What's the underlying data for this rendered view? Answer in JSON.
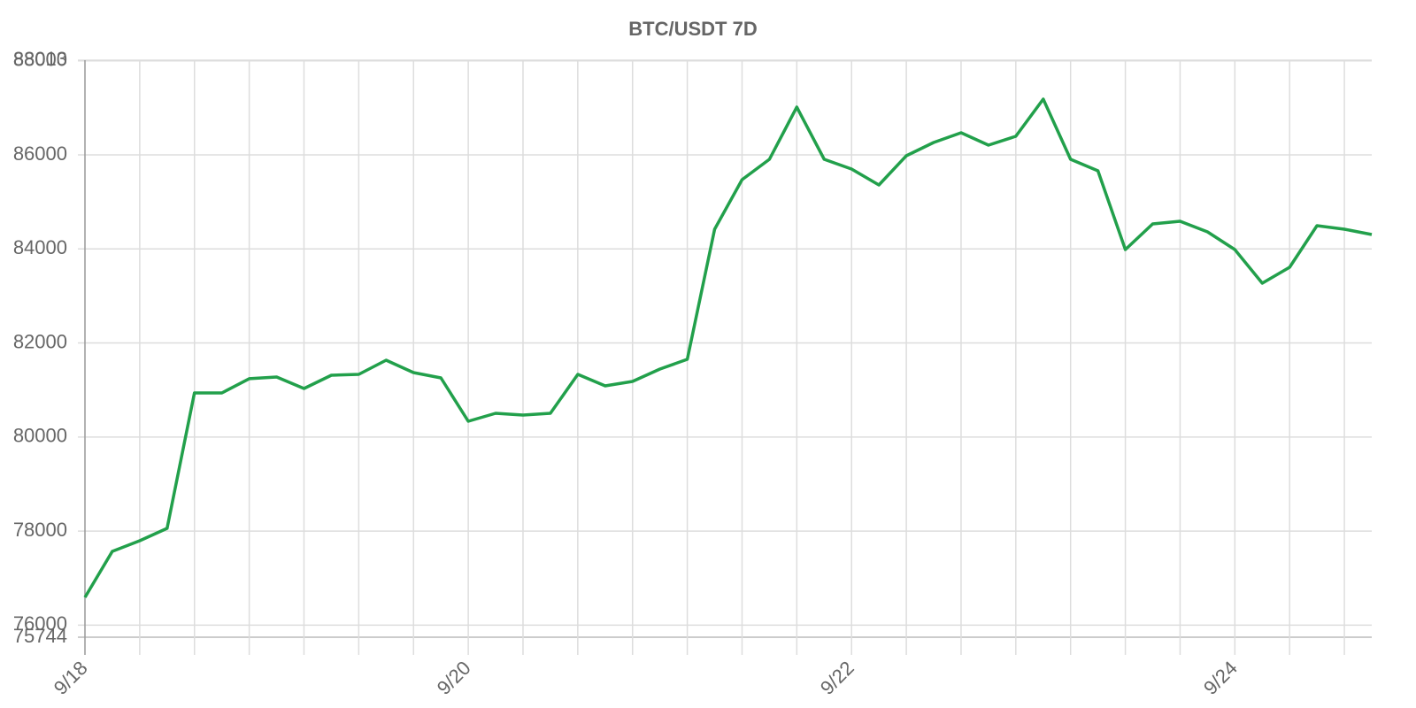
{
  "chart_data": {
    "type": "line",
    "title": "BTC/USDT 7D",
    "categories": [
      "9/18",
      null,
      null,
      null,
      null,
      null,
      null,
      null,
      null,
      null,
      null,
      null,
      null,
      null,
      "9/20",
      null,
      null,
      null,
      null,
      null,
      null,
      null,
      null,
      null,
      null,
      null,
      null,
      null,
      "9/22",
      null,
      null,
      null,
      null,
      null,
      null,
      null,
      null,
      null,
      null,
      null,
      null,
      null,
      "9/24",
      null,
      null,
      null,
      null,
      null
    ],
    "series": [
      {
        "name": "BTC/USDT",
        "color": "#22a04b",
        "values": [
          76591,
          77570,
          77795,
          78058,
          80938,
          80938,
          81240,
          81277,
          81032,
          81314,
          81333,
          81634,
          81370,
          81258,
          80335,
          80505,
          80467,
          80505,
          81333,
          81088,
          81182,
          81446,
          81652,
          84419,
          85473,
          85905,
          87015,
          85905,
          85698,
          85360,
          85980,
          86263,
          86470,
          86206,
          86394,
          87185,
          85905,
          85661,
          83986,
          84532,
          84588,
          84362,
          83986,
          83271,
          83610,
          84494,
          84419,
          84306
        ]
      }
    ],
    "ylim": [
      75744,
      88013
    ],
    "yticks": [
      75744,
      76000,
      78000,
      80000,
      82000,
      84000,
      86000,
      88000,
      88013
    ],
    "grid": true
  }
}
